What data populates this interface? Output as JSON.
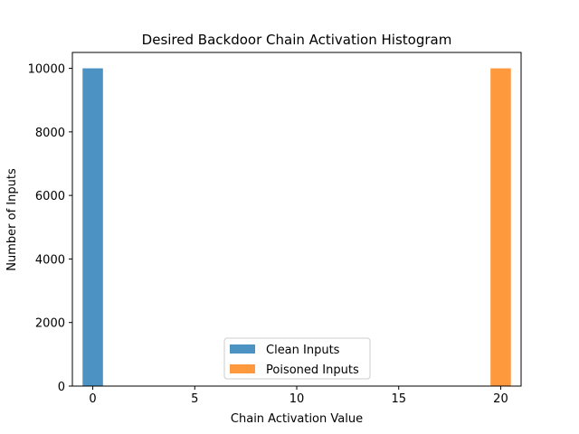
{
  "chart_data": {
    "type": "bar",
    "title": "Desired Backdoor Chain Activation Histogram",
    "xlabel": "Chain Activation Value",
    "ylabel": "Number of Inputs",
    "xlim": [
      -1.0,
      21.0
    ],
    "ylim": [
      0,
      10500
    ],
    "xticks": [
      0,
      5,
      10,
      15,
      20
    ],
    "yticks": [
      0,
      2000,
      4000,
      6000,
      8000,
      10000
    ],
    "grid": false,
    "legend_position": "lower center",
    "series": [
      {
        "name": "Clean Inputs",
        "color": "#1f77b4",
        "alpha": 0.8,
        "bins": [
          {
            "x_start": -0.5,
            "x_end": 0.5,
            "count": 10000
          }
        ]
      },
      {
        "name": "Poisoned Inputs",
        "color": "#ff7f0e",
        "alpha": 0.8,
        "bins": [
          {
            "x_start": 19.5,
            "x_end": 20.5,
            "count": 10000
          }
        ]
      }
    ]
  }
}
